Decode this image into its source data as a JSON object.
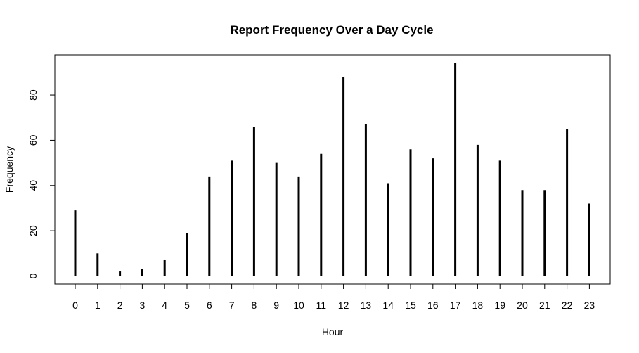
{
  "chart_data": {
    "type": "bar",
    "title": "Report Frequency Over a Day Cycle",
    "xlabel": "Hour",
    "ylabel": "Frequency",
    "categories": [
      "0",
      "1",
      "2",
      "3",
      "4",
      "5",
      "6",
      "7",
      "8",
      "9",
      "10",
      "11",
      "12",
      "13",
      "14",
      "15",
      "16",
      "17",
      "18",
      "19",
      "20",
      "21",
      "22",
      "23"
    ],
    "values": [
      29,
      10,
      2,
      3,
      7,
      19,
      44,
      51,
      66,
      50,
      44,
      54,
      88,
      67,
      41,
      56,
      52,
      94,
      58,
      51,
      38,
      38,
      65,
      32
    ],
    "yticks": [
      0,
      20,
      40,
      60,
      80
    ],
    "ylim": [
      0,
      96
    ],
    "grid": false,
    "bar_color": "#000000"
  }
}
